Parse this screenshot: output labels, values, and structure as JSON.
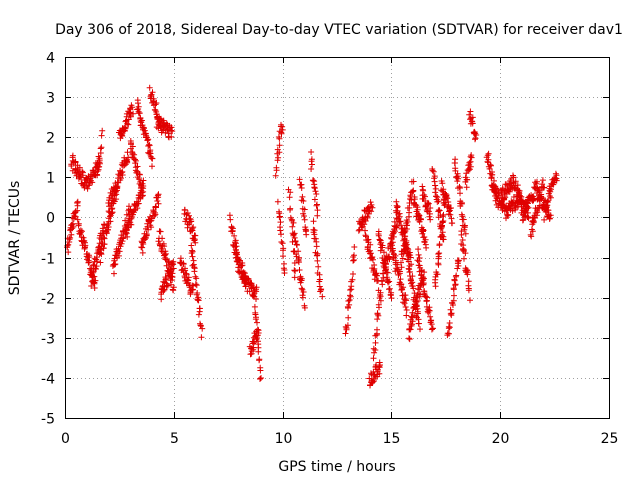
{
  "chart_data": {
    "type": "scatter",
    "title": "Day 306 of 2018, Sidereal Day-to-day VTEC variation (SDTVAR) for receiver dav1",
    "xlabel": "GPS time / hours",
    "ylabel": "SDTVAR / TECUs",
    "xlim": [
      0,
      25
    ],
    "ylim": [
      -5,
      4
    ],
    "xticks": [
      0,
      5,
      10,
      15,
      20,
      25
    ],
    "yticks": [
      -5,
      -4,
      -3,
      -2,
      -1,
      0,
      1,
      2,
      3,
      4
    ],
    "grid": true,
    "marker": "+",
    "color": "#e00000",
    "series": [
      {
        "name": "SDTVAR",
        "arcs": [
          [
            0.1,
            0.6,
            -0.8,
            0.4
          ],
          [
            0.3,
            0.9,
            1.4,
            0.9
          ],
          [
            0.6,
            1.4,
            -0.2,
            -1.7
          ],
          [
            0.9,
            1.6,
            0.8,
            1.3
          ],
          [
            1.2,
            1.8,
            -1.6,
            -0.2
          ],
          [
            1.5,
            1.7,
            1.1,
            2.0
          ],
          [
            1.6,
            2.4,
            -1.0,
            0.7
          ],
          [
            2.0,
            2.9,
            0.3,
            1.6
          ],
          [
            2.2,
            3.0,
            -1.3,
            0.2
          ],
          [
            2.5,
            3.1,
            2.0,
            2.7
          ],
          [
            2.8,
            3.6,
            -0.4,
            0.8
          ],
          [
            3.0,
            3.6,
            1.8,
            0.6
          ],
          [
            3.3,
            4.0,
            2.8,
            1.4
          ],
          [
            3.5,
            4.3,
            -0.8,
            0.5
          ],
          [
            3.9,
            4.4,
            3.2,
            2.3
          ],
          [
            4.2,
            4.9,
            2.4,
            2.1
          ],
          [
            4.3,
            5.0,
            -0.4,
            -1.7
          ],
          [
            4.4,
            5.0,
            -1.9,
            -1.2
          ],
          [
            5.3,
            5.9,
            -1.1,
            -1.9
          ],
          [
            5.5,
            6.0,
            0.1,
            -0.5
          ],
          [
            5.8,
            6.3,
            -0.7,
            -2.9
          ],
          [
            7.6,
            8.0,
            -0.1,
            -1.3
          ],
          [
            7.8,
            8.3,
            -0.7,
            -1.6
          ],
          [
            8.1,
            8.8,
            -1.5,
            -1.9
          ],
          [
            8.5,
            8.9,
            -3.3,
            -2.8
          ],
          [
            8.7,
            9.0,
            -2.0,
            -4.1
          ],
          [
            9.7,
            10.0,
            1.2,
            2.4
          ],
          [
            9.8,
            10.1,
            0.3,
            -1.3
          ],
          [
            10.3,
            10.6,
            0.7,
            -1.5
          ],
          [
            10.5,
            11.0,
            -0.3,
            -2.1
          ],
          [
            10.8,
            11.1,
            0.9,
            -0.4
          ],
          [
            11.3,
            11.6,
            1.5,
            0.1
          ],
          [
            11.4,
            11.8,
            -0.2,
            -1.9
          ],
          [
            12.9,
            13.3,
            -2.9,
            -0.9
          ],
          [
            13.5,
            14.1,
            -0.2,
            0.3
          ],
          [
            13.8,
            14.4,
            -0.4,
            -1.7
          ],
          [
            14.0,
            14.5,
            -4.1,
            -3.7
          ],
          [
            14.2,
            14.7,
            -3.4,
            -1.0
          ],
          [
            14.4,
            15.0,
            -0.4,
            -1.9
          ],
          [
            14.7,
            15.3,
            -1.3,
            0.0
          ],
          [
            15.0,
            15.7,
            -0.7,
            -2.3
          ],
          [
            15.2,
            15.9,
            0.3,
            -1.1
          ],
          [
            15.4,
            16.0,
            -1.3,
            0.9
          ],
          [
            15.6,
            16.3,
            -0.6,
            -2.7
          ],
          [
            15.8,
            16.5,
            -2.9,
            -1.4
          ],
          [
            16.0,
            16.6,
            0.5,
            -0.7
          ],
          [
            16.2,
            16.9,
            -0.9,
            -2.8
          ],
          [
            16.4,
            16.8,
            0.6,
            0.1
          ],
          [
            16.9,
            17.4,
            1.1,
            -0.6
          ],
          [
            17.0,
            17.5,
            -1.8,
            0.6
          ],
          [
            17.3,
            17.8,
            0.8,
            0.0
          ],
          [
            17.6,
            18.1,
            -2.9,
            -1.0
          ],
          [
            17.9,
            18.4,
            1.5,
            -0.4
          ],
          [
            18.2,
            18.6,
            -0.4,
            -1.9
          ],
          [
            18.4,
            18.7,
            0.8,
            1.6
          ],
          [
            18.6,
            18.9,
            2.6,
            2.0
          ],
          [
            19.4,
            19.9,
            1.6,
            0.3
          ],
          [
            19.6,
            20.3,
            0.9,
            0.1
          ],
          [
            20.0,
            20.6,
            0.5,
            0.9
          ],
          [
            20.3,
            21.0,
            0.2,
            0.5
          ],
          [
            20.6,
            21.3,
            0.9,
            0.1
          ],
          [
            21.0,
            21.7,
            0.0,
            0.8
          ],
          [
            21.4,
            22.0,
            -0.4,
            0.9
          ],
          [
            21.7,
            22.3,
            0.6,
            0.0
          ],
          [
            22.0,
            22.6,
            0.1,
            1.1
          ]
        ]
      }
    ]
  }
}
